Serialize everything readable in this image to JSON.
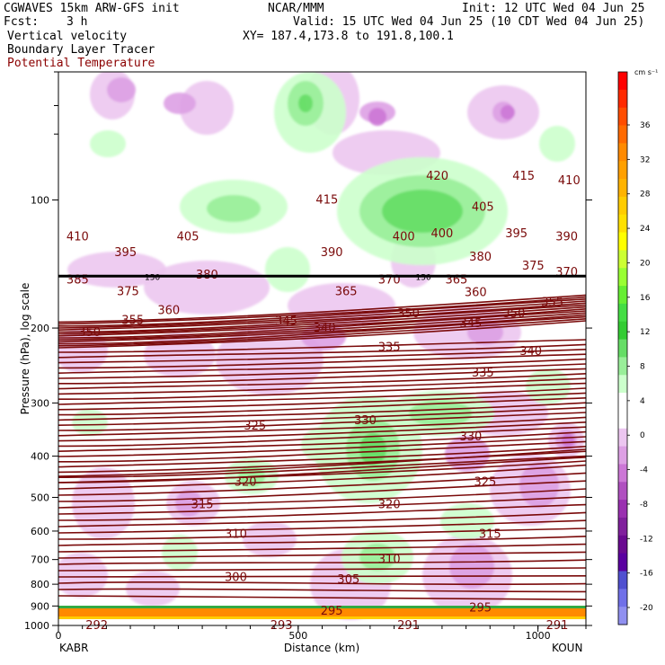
{
  "header": {
    "model": "CGWAVES 15km ARW-GFS init",
    "fcst_label": "Fcst:",
    "fcst_value": "3 h",
    "field1": "Vertical velocity",
    "field2": "Boundary Layer Tracer",
    "field3": "Potential Temperature",
    "org": "NCAR/MMM",
    "valid": "Valid: 15 UTC Wed 04 Jun 25 (10 CDT Wed 04 Jun 25)",
    "xy": "XY= 187.4,173.8 to 191.8,100.1",
    "init": "Init: 12 UTC Wed 04 Jun 25"
  },
  "colors": {
    "theta_contour": "#7a0a0a",
    "tropopause_line": "#000000",
    "positive_w": "#33cc33",
    "negative_w": "#aa44bb"
  },
  "chart_data": {
    "type": "cross-section",
    "ylabel": "Pressure (hPa), log scale",
    "xlabel": "Distance (km)",
    "y_scale": "log",
    "ylim": [
      1000,
      50
    ],
    "xlim": [
      0,
      1100
    ],
    "x_ticks": [
      "0",
      "500",
      "1000"
    ],
    "y_ticks": [
      "100",
      "200",
      "300",
      "400",
      "500",
      "600",
      "700",
      "800",
      "900",
      "1000"
    ],
    "left_station": "KABR",
    "right_station": "KOUN",
    "colorbar": {
      "unit": "cm s⁻¹",
      "labels": [
        "36",
        "32",
        "28",
        "24",
        "20",
        "16",
        "12",
        "8",
        "4",
        "0",
        "-4",
        "-8",
        "-12",
        "-16",
        "-20"
      ],
      "colors": [
        "#ff0000",
        "#ff2a00",
        "#ff4d00",
        "#ff6a00",
        "#ff8a00",
        "#ffa000",
        "#ffb300",
        "#ffcc00",
        "#ffe000",
        "#ffff00",
        "#ccff33",
        "#99ff33",
        "#66ee33",
        "#44dd44",
        "#33cc33",
        "#66dd66",
        "#99ee99",
        "#ccffcc",
        "#ffffff",
        "#ffffff",
        "#ecc6f0",
        "#dda0e4",
        "#cc77d6",
        "#b050c0",
        "#9a30b0",
        "#80209c",
        "#6a0a90",
        "#5a00a0",
        "#5050d0",
        "#7070e8",
        "#9090f0"
      ]
    },
    "tropopause_label": "150",
    "theta_labels": [
      {
        "text": "410",
        "x_km": 40,
        "p_hpa": 122
      },
      {
        "text": "405",
        "x_km": 270,
        "p_hpa": 122
      },
      {
        "text": "395",
        "x_km": 140,
        "p_hpa": 133
      },
      {
        "text": "415",
        "x_km": 560,
        "p_hpa": 100
      },
      {
        "text": "420",
        "x_km": 790,
        "p_hpa": 88
      },
      {
        "text": "405",
        "x_km": 885,
        "p_hpa": 104
      },
      {
        "text": "415",
        "x_km": 970,
        "p_hpa": 88
      },
      {
        "text": "410",
        "x_km": 1065,
        "p_hpa": 90
      },
      {
        "text": "395",
        "x_km": 955,
        "p_hpa": 120
      },
      {
        "text": "390",
        "x_km": 1060,
        "p_hpa": 122
      },
      {
        "text": "400",
        "x_km": 720,
        "p_hpa": 122
      },
      {
        "text": "400",
        "x_km": 800,
        "p_hpa": 120
      },
      {
        "text": "390",
        "x_km": 570,
        "p_hpa": 133
      },
      {
        "text": "380",
        "x_km": 880,
        "p_hpa": 136
      },
      {
        "text": "375",
        "x_km": 990,
        "p_hpa": 143
      },
      {
        "text": "370",
        "x_km": 1060,
        "p_hpa": 148
      },
      {
        "text": "385",
        "x_km": 40,
        "p_hpa": 154
      },
      {
        "text": "380",
        "x_km": 310,
        "p_hpa": 150
      },
      {
        "text": "375",
        "x_km": 145,
        "p_hpa": 164
      },
      {
        "text": "370",
        "x_km": 690,
        "p_hpa": 154
      },
      {
        "text": "365",
        "x_km": 600,
        "p_hpa": 164
      },
      {
        "text": "365",
        "x_km": 830,
        "p_hpa": 154
      },
      {
        "text": "360",
        "x_km": 870,
        "p_hpa": 165
      },
      {
        "text": "360",
        "x_km": 230,
        "p_hpa": 182
      },
      {
        "text": "355",
        "x_km": 155,
        "p_hpa": 192
      },
      {
        "text": "355",
        "x_km": 1030,
        "p_hpa": 174
      },
      {
        "text": "350",
        "x_km": 730,
        "p_hpa": 185
      },
      {
        "text": "350",
        "x_km": 950,
        "p_hpa": 185
      },
      {
        "text": "350",
        "x_km": 65,
        "p_hpa": 205
      },
      {
        "text": "345",
        "x_km": 475,
        "p_hpa": 193
      },
      {
        "text": "345",
        "x_km": 860,
        "p_hpa": 195
      },
      {
        "text": "340",
        "x_km": 555,
        "p_hpa": 200
      },
      {
        "text": "340",
        "x_km": 985,
        "p_hpa": 227
      },
      {
        "text": "335",
        "x_km": 690,
        "p_hpa": 222
      },
      {
        "text": "335",
        "x_km": 885,
        "p_hpa": 255
      },
      {
        "text": "330",
        "x_km": 640,
        "p_hpa": 330
      },
      {
        "text": "330",
        "x_km": 860,
        "p_hpa": 360
      },
      {
        "text": "325",
        "x_km": 410,
        "p_hpa": 340
      },
      {
        "text": "325",
        "x_km": 890,
        "p_hpa": 460
      },
      {
        "text": "320",
        "x_km": 390,
        "p_hpa": 460
      },
      {
        "text": "320",
        "x_km": 690,
        "p_hpa": 520
      },
      {
        "text": "315",
        "x_km": 300,
        "p_hpa": 520
      },
      {
        "text": "315",
        "x_km": 900,
        "p_hpa": 610
      },
      {
        "text": "310",
        "x_km": 370,
        "p_hpa": 610
      },
      {
        "text": "310",
        "x_km": 690,
        "p_hpa": 700
      },
      {
        "text": "305",
        "x_km": 605,
        "p_hpa": 780
      },
      {
        "text": "300",
        "x_km": 370,
        "p_hpa": 770
      },
      {
        "text": "295",
        "x_km": 570,
        "p_hpa": 925
      },
      {
        "text": "295",
        "x_km": 880,
        "p_hpa": 910
      },
      {
        "text": "292",
        "x_km": 80,
        "p_hpa": 1000
      },
      {
        "text": "293",
        "x_km": 465,
        "p_hpa": 1000
      },
      {
        "text": "291",
        "x_km": 730,
        "p_hpa": 1000
      },
      {
        "text": "291",
        "x_km": 1040,
        "p_hpa": 1000
      }
    ]
  }
}
